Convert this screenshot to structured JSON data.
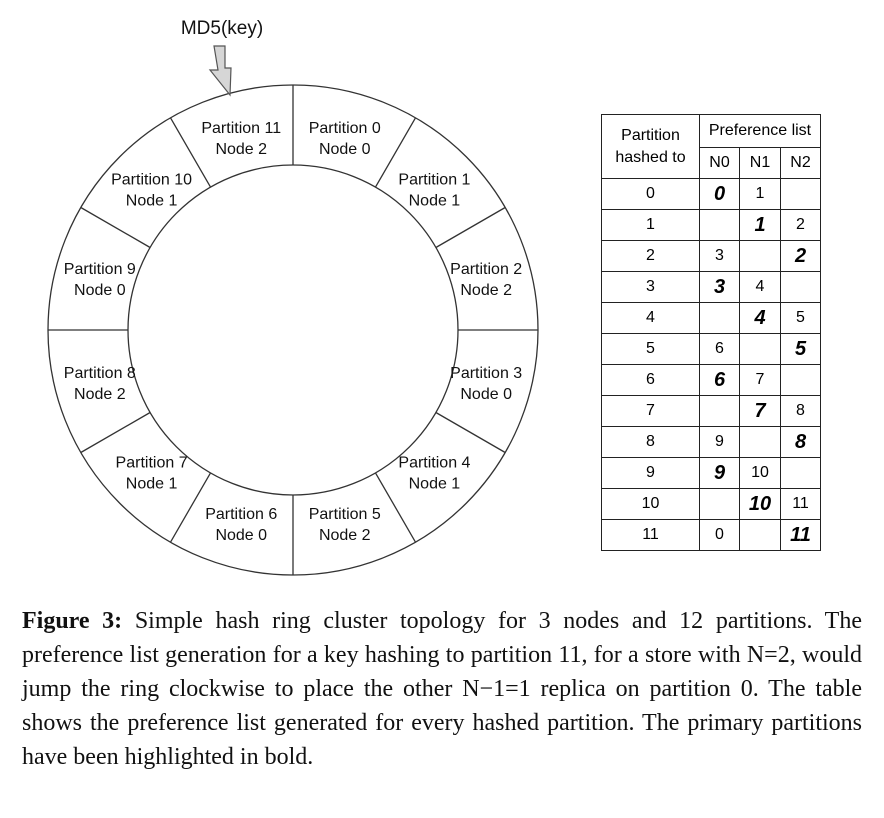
{
  "ring": {
    "key_label": "MD5(key)",
    "partitions": [
      {
        "partition": "Partition 0",
        "node": "Node 0"
      },
      {
        "partition": "Partition 1",
        "node": "Node 1"
      },
      {
        "partition": "Partition 2",
        "node": "Node 2"
      },
      {
        "partition": "Partition 3",
        "node": "Node 0"
      },
      {
        "partition": "Partition 4",
        "node": "Node 1"
      },
      {
        "partition": "Partition 5",
        "node": "Node 2"
      },
      {
        "partition": "Partition 6",
        "node": "Node 0"
      },
      {
        "partition": "Partition 7",
        "node": "Node 1"
      },
      {
        "partition": "Partition 8",
        "node": "Node 2"
      },
      {
        "partition": "Partition 9",
        "node": "Node 0"
      },
      {
        "partition": "Partition 10",
        "node": "Node 1"
      },
      {
        "partition": "Partition 11",
        "node": "Node 2"
      }
    ]
  },
  "table": {
    "header_partition_line1": "Partition",
    "header_partition_line2": "hashed to",
    "header_preference": "Preference list",
    "columns": [
      "N0",
      "N1",
      "N2"
    ],
    "rows": [
      {
        "hashed": "0",
        "cells": [
          "0",
          "1",
          ""
        ],
        "bold": 0
      },
      {
        "hashed": "1",
        "cells": [
          "",
          "1",
          "2"
        ],
        "bold": 1
      },
      {
        "hashed": "2",
        "cells": [
          "3",
          "",
          "2"
        ],
        "bold": 2
      },
      {
        "hashed": "3",
        "cells": [
          "3",
          "4",
          ""
        ],
        "bold": 0
      },
      {
        "hashed": "4",
        "cells": [
          "",
          "4",
          "5"
        ],
        "bold": 1
      },
      {
        "hashed": "5",
        "cells": [
          "6",
          "",
          "5"
        ],
        "bold": 2
      },
      {
        "hashed": "6",
        "cells": [
          "6",
          "7",
          ""
        ],
        "bold": 0
      },
      {
        "hashed": "7",
        "cells": [
          "",
          "7",
          "8"
        ],
        "bold": 1
      },
      {
        "hashed": "8",
        "cells": [
          "9",
          "",
          "8"
        ],
        "bold": 2
      },
      {
        "hashed": "9",
        "cells": [
          "9",
          "10",
          ""
        ],
        "bold": 0
      },
      {
        "hashed": "10",
        "cells": [
          "",
          "10",
          "11"
        ],
        "bold": 1
      },
      {
        "hashed": "11",
        "cells": [
          "0",
          "",
          "11"
        ],
        "bold": 2
      }
    ]
  },
  "caption": {
    "label": "Figure 3:",
    "text": " Simple hash ring cluster topology for 3 nodes and 12 partitions. The preference list generation for a key hashing to partition 11, for a store with N=2, would jump the ring clockwise to place the other N−1=1 replica on partition 0. The table shows the preference list generated for every hashed partition. The primary partitions have been highlighted in bold."
  }
}
